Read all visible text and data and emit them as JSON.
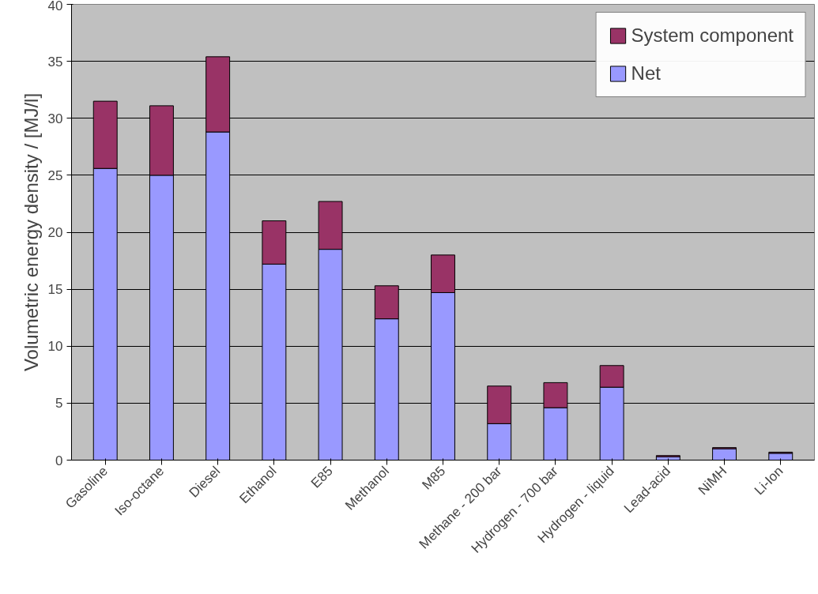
{
  "chart_data": {
    "type": "bar",
    "stacked": true,
    "ylabel": "Volumetric energy density / [MJ/l]",
    "categories": [
      "Gasoline",
      "Iso-octane",
      "Diesel",
      "Ethanol",
      "E85",
      "Methanol",
      "M85",
      "Methane - 200 bar",
      "Hydrogen - 700 bar",
      "Hydrogen - liquid",
      "Lead-acid",
      "NiMH",
      "Li-Ion"
    ],
    "series": [
      {
        "name": "Net",
        "color": "#9999ff",
        "values": [
          25.6,
          25.0,
          28.8,
          17.2,
          18.5,
          12.4,
          14.7,
          3.2,
          4.6,
          6.4,
          0.3,
          1.0,
          0.6
        ]
      },
      {
        "name": "System component",
        "color": "#993366",
        "values": [
          5.9,
          6.1,
          6.6,
          3.8,
          4.2,
          2.9,
          3.3,
          3.3,
          2.2,
          1.9,
          0.1,
          0.1,
          0.1
        ]
      }
    ],
    "ylim": [
      0,
      40
    ],
    "yticks": [
      0,
      5,
      10,
      15,
      20,
      25,
      30,
      35,
      40
    ],
    "grid": "y",
    "legend": "top right"
  }
}
